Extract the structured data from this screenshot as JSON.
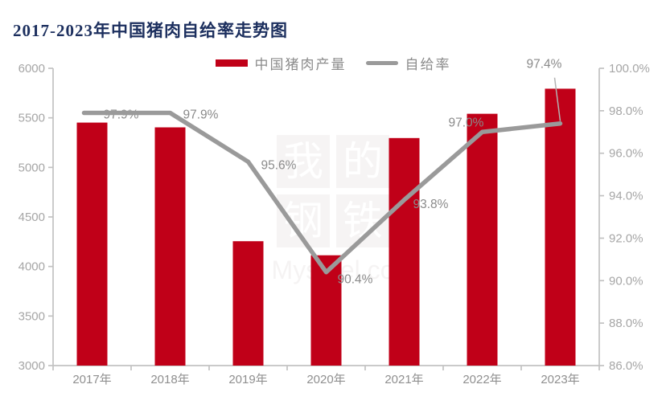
{
  "title": "2017-2023年中国猪肉自给率走势图",
  "legend": [
    {
      "label": "中国猪肉产量",
      "type": "bar",
      "color": "#c00018"
    },
    {
      "label": "自给率",
      "type": "line",
      "color": "#9a9a9a"
    }
  ],
  "watermark": {
    "chars": [
      "我",
      "的",
      "钢",
      "铁"
    ],
    "text": "Mysteel.co"
  },
  "colors": {
    "title": "#1c2f5e",
    "bar": "#c00018",
    "line": "#9a9a9a",
    "axis_line": "#c2c2c2",
    "tick_label": "#a6a6a6",
    "category_label": "#8f8f8f",
    "data_label": "#8a8a8a"
  },
  "chart_data": {
    "type": "bar",
    "title": "2017-2023年中国猪肉自给率走势图",
    "categories": [
      "2017年",
      "2018年",
      "2019年",
      "2020年",
      "2021年",
      "2022年",
      "2023年"
    ],
    "series": [
      {
        "name": "中国猪肉产量",
        "type": "bar",
        "axis": "left",
        "values": [
          5452,
          5404,
          4255,
          4113,
          5296,
          5541,
          5794
        ]
      },
      {
        "name": "自给率",
        "type": "line",
        "axis": "right",
        "values": [
          97.9,
          97.9,
          95.6,
          90.4,
          93.8,
          97.0,
          97.4
        ],
        "labels": [
          "97.9%",
          "97.9%",
          "95.6%",
          "90.4%",
          "93.8%",
          "97.0%",
          "97.4%"
        ]
      }
    ],
    "left_axis": {
      "min": 3000,
      "max": 6000,
      "step": 500,
      "ticks": [
        "6000",
        "5500",
        "5000",
        "4500",
        "4000",
        "3500",
        "3000"
      ]
    },
    "right_axis": {
      "min": 86,
      "max": 100,
      "step": 2,
      "ticks": [
        "100.0%",
        "98.0%",
        "96.0%",
        "94.0%",
        "92.0%",
        "90.0%",
        "88.0%",
        "86.0%"
      ]
    },
    "grid": false,
    "legend_position": "top-center"
  }
}
